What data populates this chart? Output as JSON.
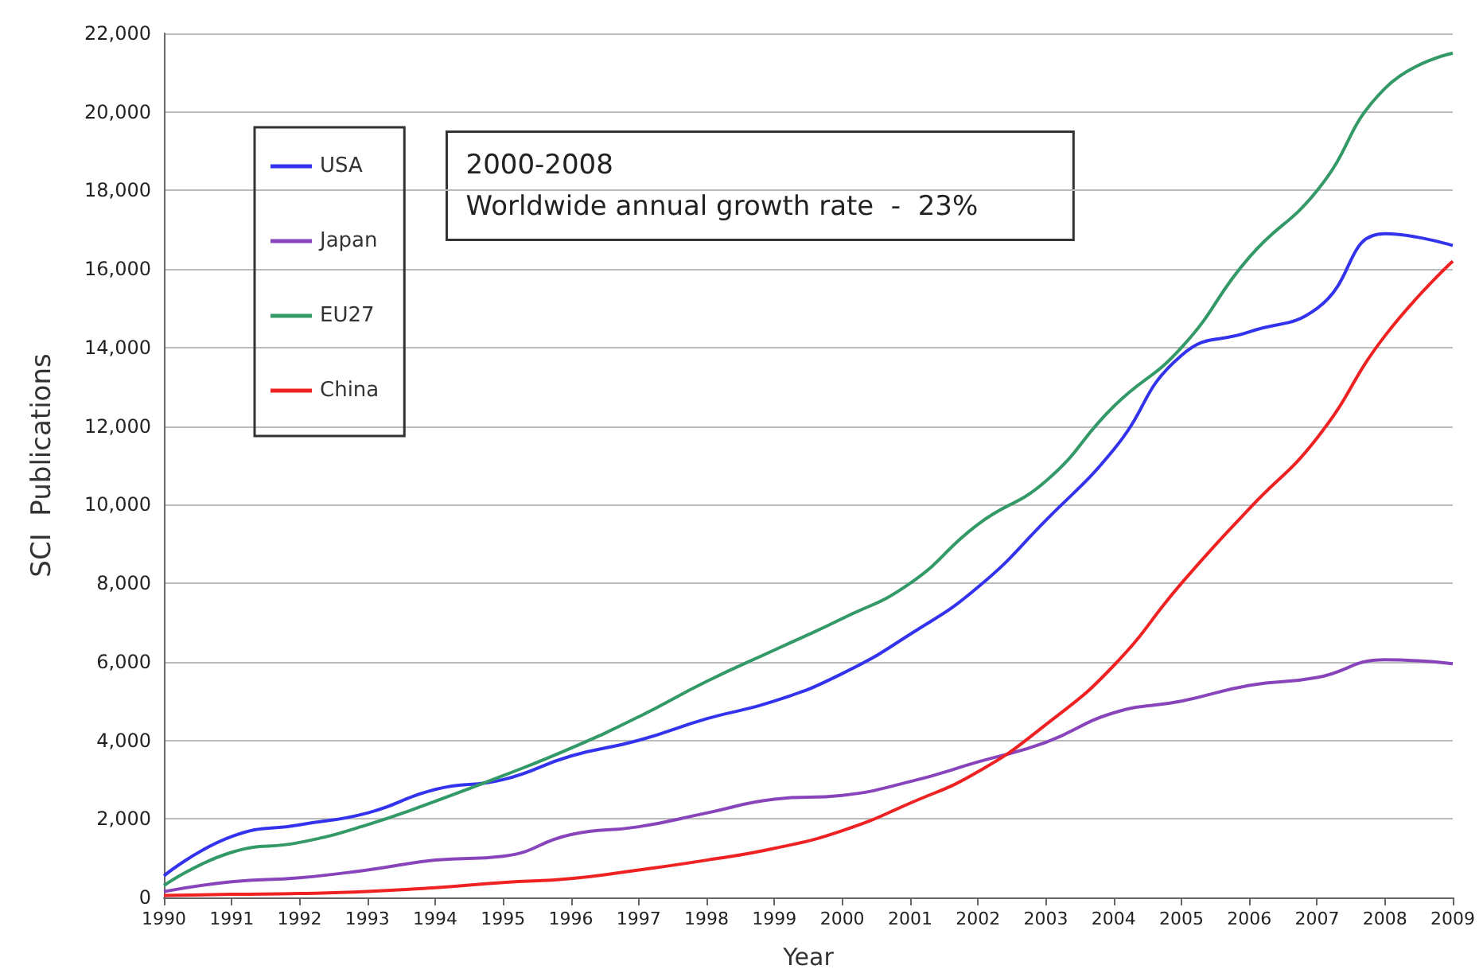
{
  "chart_data": {
    "type": "line",
    "xlabel": "Year",
    "ylabel": "SCI  Publications",
    "x": [
      1990,
      1991,
      1992,
      1993,
      1994,
      1995,
      1996,
      1997,
      1998,
      1999,
      2000,
      2001,
      2002,
      2003,
      2004,
      2005,
      2006,
      2007,
      2008,
      2009
    ],
    "xlim": [
      1990,
      2009
    ],
    "xticks": [
      1990,
      1991,
      1992,
      1993,
      1994,
      1995,
      1996,
      1997,
      1998,
      1999,
      2000,
      2001,
      2002,
      2003,
      2004,
      2005,
      2006,
      2007,
      2008,
      2009
    ],
    "ylim": [
      0,
      22000
    ],
    "yticks": [
      {
        "value": 0,
        "label": "0"
      },
      {
        "value": 2000,
        "label": "2,000"
      },
      {
        "value": 4000,
        "label": "4,000"
      },
      {
        "value": 6000,
        "label": "6,000"
      },
      {
        "value": 8000,
        "label": "8,000"
      },
      {
        "value": 10000,
        "label": "10,000"
      },
      {
        "value": 12000,
        "label": "12,000"
      },
      {
        "value": 14000,
        "label": "14,000"
      },
      {
        "value": 16000,
        "label": "16,000"
      },
      {
        "value": 18000,
        "label": "18,000"
      },
      {
        "value": 20000,
        "label": "20,000"
      },
      {
        "value": 22000,
        "label": "22,000"
      }
    ],
    "series": [
      {
        "name": "USA",
        "color": "#3333ee",
        "values": [
          550,
          1550,
          1850,
          2150,
          2750,
          3000,
          3600,
          4000,
          4550,
          5000,
          5700,
          6700,
          7900,
          9600,
          11400,
          13800,
          14400,
          15000,
          16900,
          16600
        ]
      },
      {
        "name": "Japan",
        "color": "#8844bb",
        "values": [
          150,
          400,
          500,
          700,
          950,
          1050,
          1600,
          1800,
          2150,
          2500,
          2600,
          2950,
          3450,
          3950,
          4700,
          5000,
          5400,
          5600,
          6050,
          5950
        ]
      },
      {
        "name": "EU27",
        "color": "#339966",
        "values": [
          300,
          1150,
          1400,
          1850,
          2450,
          3100,
          3800,
          4600,
          5500,
          6300,
          7100,
          8000,
          9500,
          10600,
          12500,
          14000,
          16300,
          18000,
          20600,
          21500
        ]
      },
      {
        "name": "China",
        "color": "#ee2222",
        "values": [
          50,
          80,
          100,
          150,
          250,
          380,
          480,
          700,
          950,
          1250,
          1700,
          2400,
          3200,
          4400,
          5900,
          8000,
          9900,
          11700,
          14300,
          16200
        ]
      }
    ],
    "annotations": [
      "2000-2008\nWorldwide annual growth rate  -  23%"
    ],
    "grid": "y",
    "legend": "top left",
    "marker": "none",
    "line_style": "solid"
  }
}
